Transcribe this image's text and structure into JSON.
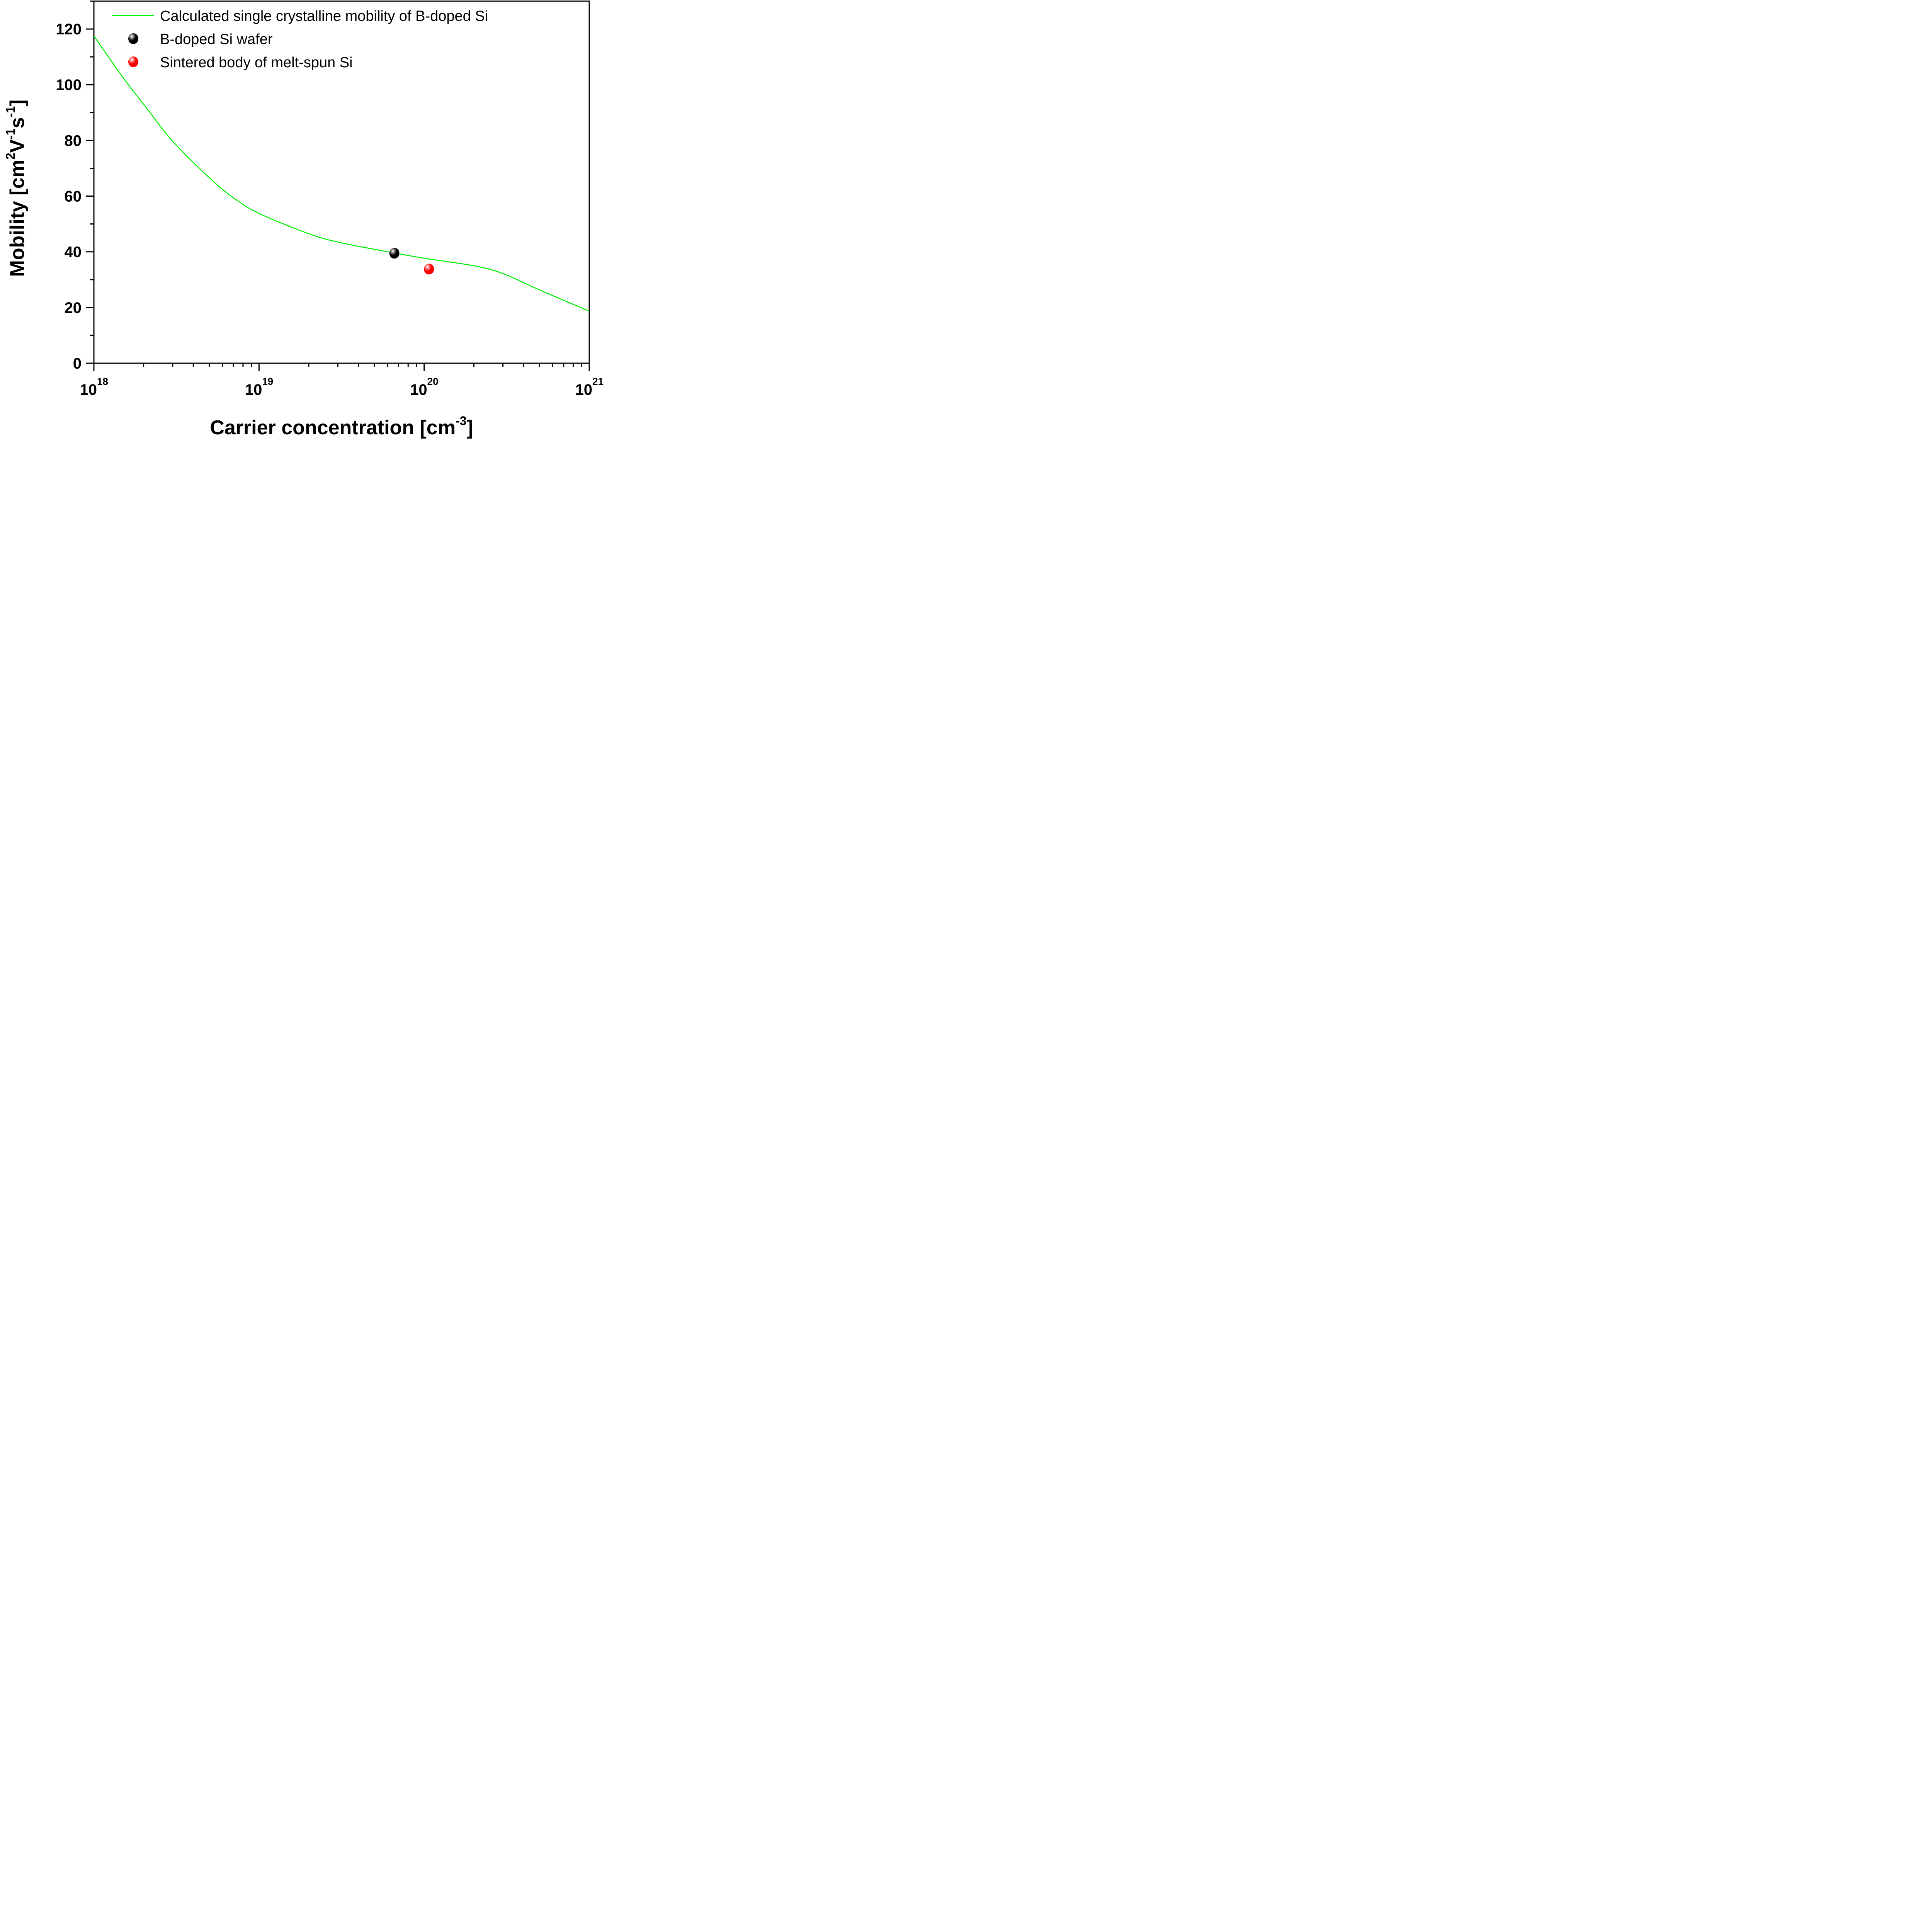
{
  "chart_data": {
    "type": "line",
    "title": "",
    "xlabel": "Carrier concentration [cm",
    "xlabel_sup": "-3",
    "xlabel_suffix": "]",
    "ylabel_parts": [
      {
        "text": "Mobility [cm",
        "sup": false
      },
      {
        "text": "2",
        "sup": true
      },
      {
        "text": "V",
        "sup": false
      },
      {
        "text": "-1",
        "sup": true
      },
      {
        "text": "s",
        "sup": false
      },
      {
        "text": "-1",
        "sup": true
      },
      {
        "text": "]",
        "sup": false
      }
    ],
    "xscale": "log",
    "xlim": [
      1e+18,
      1e+21
    ],
    "ylim": [
      0,
      130
    ],
    "grid": false,
    "legend_position": "top-right",
    "x_ticks": [
      {
        "value": 1e+18,
        "base": "10",
        "exp": "18"
      },
      {
        "value": 1e+19,
        "base": "10",
        "exp": "19"
      },
      {
        "value": 1e+20,
        "base": "10",
        "exp": "20"
      },
      {
        "value": 1e+21,
        "base": "10",
        "exp": "21"
      }
    ],
    "y_ticks": [
      0,
      20,
      40,
      60,
      80,
      100,
      120
    ],
    "y_minor_step": 10,
    "series": [
      {
        "name": "Calculated single crystalline mobility of B-doped Si",
        "kind": "line",
        "color": "#00ee00",
        "x": [
          1e+18,
          1.5e+18,
          2e+18,
          3e+18,
          5e+18,
          7e+18,
          1e+19,
          2e+19,
          3e+19,
          5e+19,
          1e+20,
          2e+20,
          3e+20,
          5e+20,
          1e+21
        ],
        "y": [
          117.5,
          102.6,
          93.0,
          79.7,
          66.6,
          59.4,
          53.8,
          46.5,
          43.5,
          40.9,
          37.7,
          35.0,
          32.2,
          26.3,
          18.7
        ]
      },
      {
        "name": "B-doped Si wafer",
        "kind": "scatter",
        "color": "#000000",
        "x": [
          6.6e+19
        ],
        "y": [
          39.5
        ]
      },
      {
        "name": "Sintered body of melt-spun Si",
        "kind": "scatter",
        "color": "#ff0000",
        "x": [
          1.07e+20
        ],
        "y": [
          33.8
        ]
      }
    ]
  }
}
